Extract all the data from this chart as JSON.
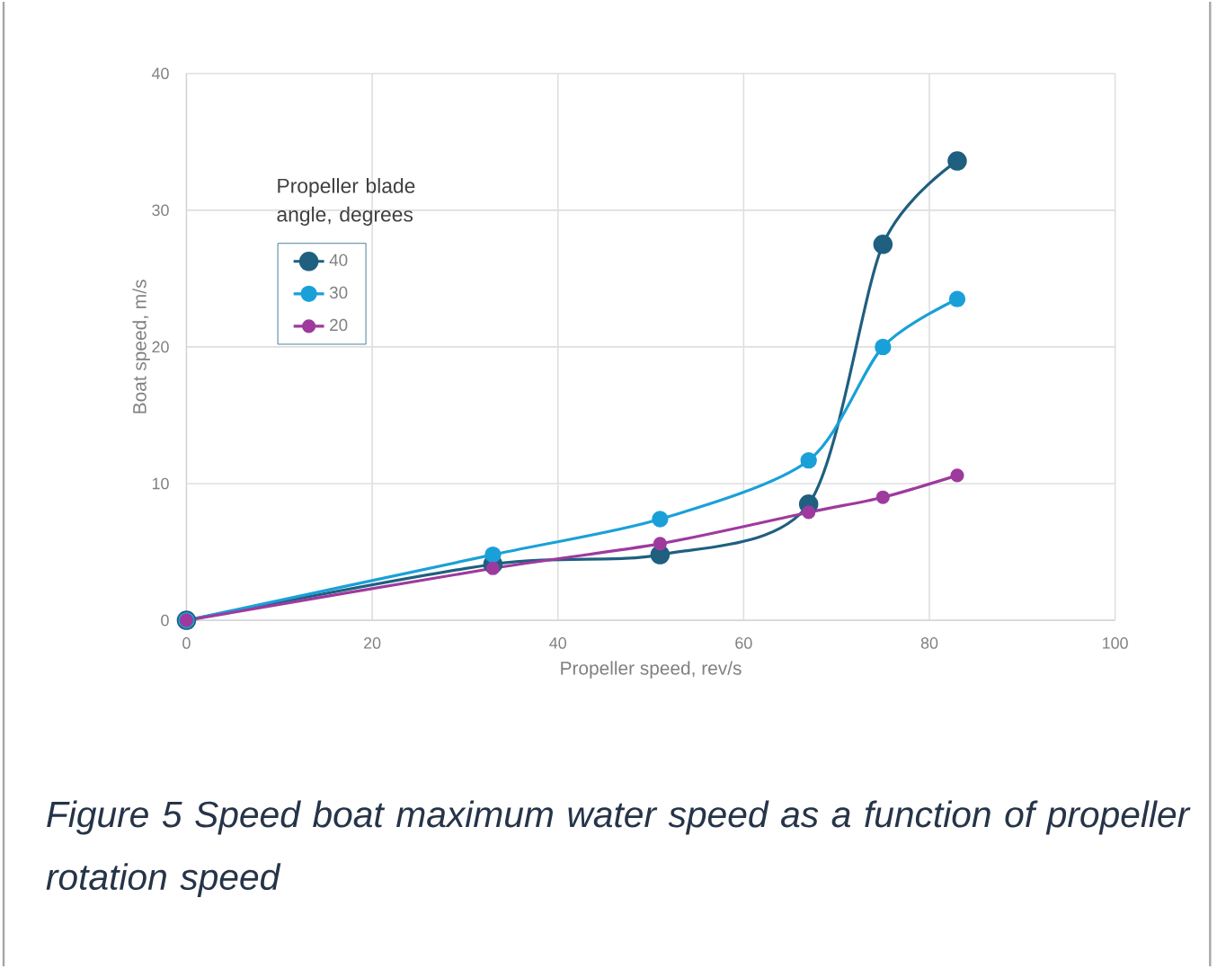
{
  "chart_data": {
    "type": "line",
    "xlabel": "Propeller speed, rev/s",
    "ylabel": "Boat speed, m/s",
    "legend_title": "Propeller blade angle, degrees",
    "x": [
      0,
      33,
      51,
      67,
      75,
      83
    ],
    "series": [
      {
        "name": "40",
        "color": "#1f5f7f",
        "values": [
          0,
          4.1,
          4.8,
          8.5,
          27.5,
          33.6
        ]
      },
      {
        "name": "30",
        "color": "#1aa0d8",
        "values": [
          0,
          4.8,
          7.4,
          11.7,
          20,
          23.5
        ]
      },
      {
        "name": "20",
        "color": "#9e3a9e",
        "values": [
          0,
          3.8,
          5.6,
          7.9,
          9.0,
          10.6
        ]
      }
    ],
    "xlim": [
      0,
      100
    ],
    "xticks": [
      0,
      20,
      40,
      60,
      80,
      100
    ],
    "ylim": [
      0,
      40
    ],
    "yticks": [
      0,
      10,
      20,
      30,
      40
    ],
    "grid": true,
    "legend": "top left",
    "marker": "circle",
    "line_style": "solid",
    "annotations": [
      "Figure 5 Speed boat maximum water speed as a function of propeller rotation speed"
    ]
  }
}
